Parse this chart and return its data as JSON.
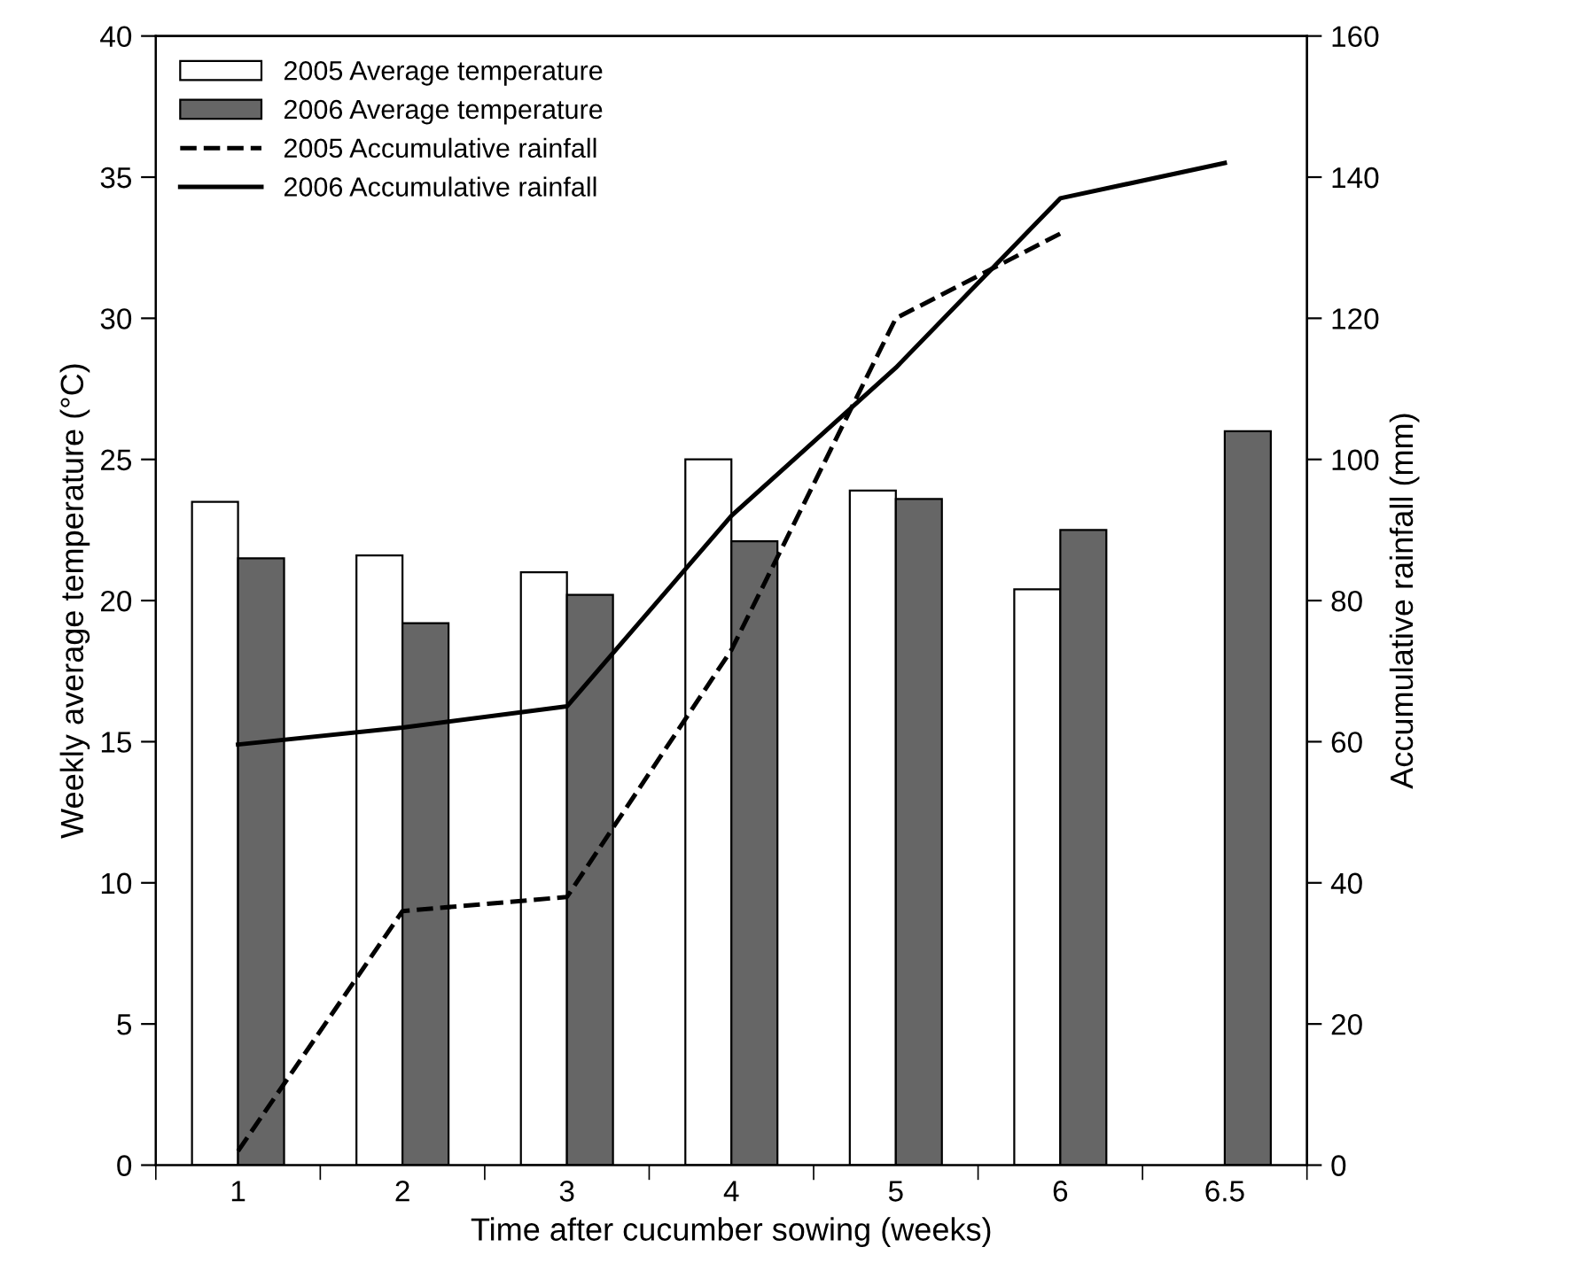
{
  "chart_data": {
    "type": "bar",
    "xlabel": "Time after cucumber sowing (weeks)",
    "ylabel": "Weekly average temperature (°C)",
    "y2label": "Accumulative rainfall (mm)",
    "categories": [
      "1",
      "2",
      "3",
      "4",
      "5",
      "6",
      "6.5"
    ],
    "series": [
      {
        "name": "2005 Average temperature",
        "color": "#ffffff",
        "values": [
          23.5,
          21.6,
          21.0,
          25.0,
          23.9,
          20.4,
          null
        ]
      },
      {
        "name": "2006 Average temperature",
        "color": "#666666",
        "values": [
          21.5,
          19.2,
          20.2,
          22.1,
          23.6,
          22.5,
          26.0
        ]
      },
      {
        "name": "2005 Accumulative rainfall",
        "type": "line",
        "axis": "y2",
        "line_style": "dashed",
        "color": "#000000",
        "values": [
          2,
          36,
          38,
          73,
          120,
          132,
          null
        ]
      },
      {
        "name": "2006 Accumulative rainfall",
        "type": "line",
        "axis": "y2",
        "line_style": "solid",
        "color": "#000000",
        "values": [
          59.6,
          62,
          65,
          92,
          113,
          137,
          142
        ]
      }
    ],
    "ylim": [
      0,
      40
    ],
    "yticks": [
      0,
      5,
      10,
      15,
      20,
      25,
      30,
      35,
      40
    ],
    "y2lim": [
      0,
      160
    ],
    "y2ticks": [
      0,
      20,
      40,
      60,
      80,
      100,
      120,
      140,
      160
    ],
    "legend": "top left",
    "grid": false,
    "marker": "none"
  }
}
